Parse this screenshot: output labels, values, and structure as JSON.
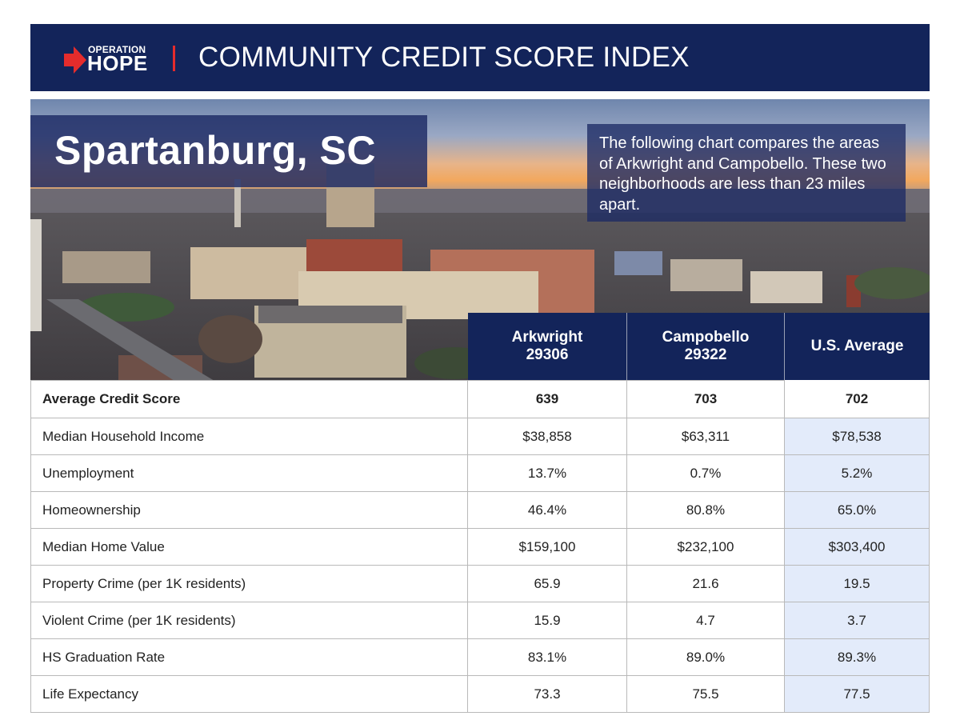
{
  "header": {
    "logo_top": "OPERATION",
    "logo_bottom": "HOPE",
    "title": "COMMUNITY CREDIT SCORE INDEX",
    "accent_color": "#e52c2c",
    "navy_color": "#13245a"
  },
  "hero": {
    "city": "Spartanburg, SC",
    "description": "The following chart compares the areas of Arkwright and Campobello. These two neighborhoods are less than 23 miles apart."
  },
  "table": {
    "columns": [
      {
        "name": "Arkwright",
        "zip": "29306"
      },
      {
        "name": "Campobello",
        "zip": "29322"
      },
      {
        "name": "U.S. Average",
        "zip": ""
      }
    ],
    "rows": [
      {
        "label": "Average Credit Score",
        "values": [
          "639",
          "703",
          "702"
        ]
      },
      {
        "label": "Median Household Income",
        "values": [
          "$38,858",
          "$63,311",
          "$78,538"
        ]
      },
      {
        "label": "Unemployment",
        "values": [
          "13.7%",
          "0.7%",
          "5.2%"
        ]
      },
      {
        "label": "Homeownership",
        "values": [
          "46.4%",
          "80.8%",
          "65.0%"
        ]
      },
      {
        "label": "Median Home Value",
        "values": [
          "$159,100",
          "$232,100",
          "$303,400"
        ]
      },
      {
        "label": "Property Crime (per 1K residents)",
        "values": [
          "65.9",
          "21.6",
          "19.5"
        ]
      },
      {
        "label": "Violent Crime (per 1K residents)",
        "values": [
          "15.9",
          "4.7",
          "3.7"
        ]
      },
      {
        "label": "HS Graduation Rate",
        "values": [
          "83.1%",
          "89.0%",
          "89.3%"
        ]
      },
      {
        "label": "Life Expectancy",
        "values": [
          "73.3",
          "75.5",
          "77.5"
        ]
      }
    ]
  }
}
